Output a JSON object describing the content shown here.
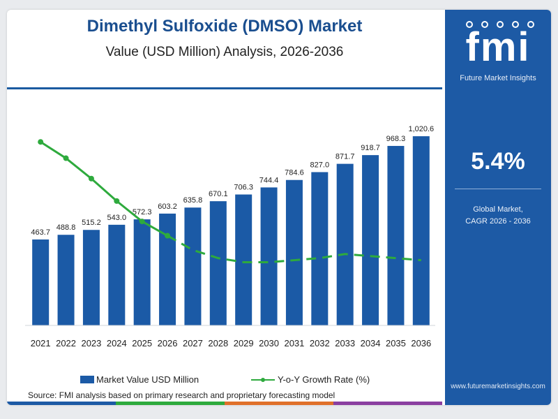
{
  "header": {
    "title": "Dimethyl Sulfoxide (DMSO) Market",
    "subtitle": "Value (USD Million) Analysis, 2026-2036"
  },
  "chart_data": {
    "type": "bar",
    "categories": [
      "2021",
      "2022",
      "2023",
      "2024",
      "2025",
      "2026",
      "2027",
      "2028",
      "2029",
      "2030",
      "2031",
      "2032",
      "2033",
      "2034",
      "2035",
      "2036"
    ],
    "series": [
      {
        "name": "Market Value USD Million",
        "type": "bar",
        "values": [
          463.7,
          488.8,
          515.2,
          543.0,
          572.3,
          603.2,
          635.8,
          670.1,
          706.3,
          744.4,
          784.6,
          827.0,
          871.7,
          918.7,
          968.3,
          1020.6
        ],
        "labels": [
          "463.7",
          "488.8",
          "515.2",
          "543.0",
          "572.3",
          "603.2",
          "635.8",
          "670.1",
          "706.3",
          "744.4",
          "784.6",
          "827.0",
          "871.7",
          "918.7",
          "968.3",
          "1,020.6"
        ],
        "color": "#1b5aa6"
      },
      {
        "name": "Y-o-Y Growth Rate (%)",
        "type": "line",
        "values": [
          9.0,
          8.2,
          7.2,
          6.1,
          5.1,
          4.4,
          3.7,
          3.3,
          3.1,
          3.1,
          3.2,
          3.3,
          3.5,
          3.4,
          3.3,
          3.2
        ],
        "marker_count": 6,
        "color": "#2eaa3d"
      }
    ],
    "ylim": [
      0,
      1100
    ],
    "y2lim": [
      0,
      10
    ],
    "xlabel": "",
    "ylabel": "",
    "grid": false,
    "legend_position": "bottom"
  },
  "legend": {
    "bar_label": "Market Value USD Million",
    "line_label": "Y-o-Y Growth Rate (%)"
  },
  "source": "Source: FMI analysis based on primary research and proprietary forecasting model",
  "sidebar": {
    "logo_text": "fmi",
    "logo_subtitle": "Future Market Insights",
    "cagr_value": "5.4%",
    "cagr_label_line1": "Global Market,",
    "cagr_label_line2": "CAGR 2026 - 2036",
    "website": "www.futuremarketinsights.com"
  },
  "colors": {
    "title": "#1a4e8f",
    "bar": "#1b5aa6",
    "line": "#2eaa3d",
    "sidebar": "#1d5aa5",
    "accent_bar": [
      "#1d5aa5",
      "#2eaa3d",
      "#e0702a",
      "#8a3fa0"
    ]
  }
}
